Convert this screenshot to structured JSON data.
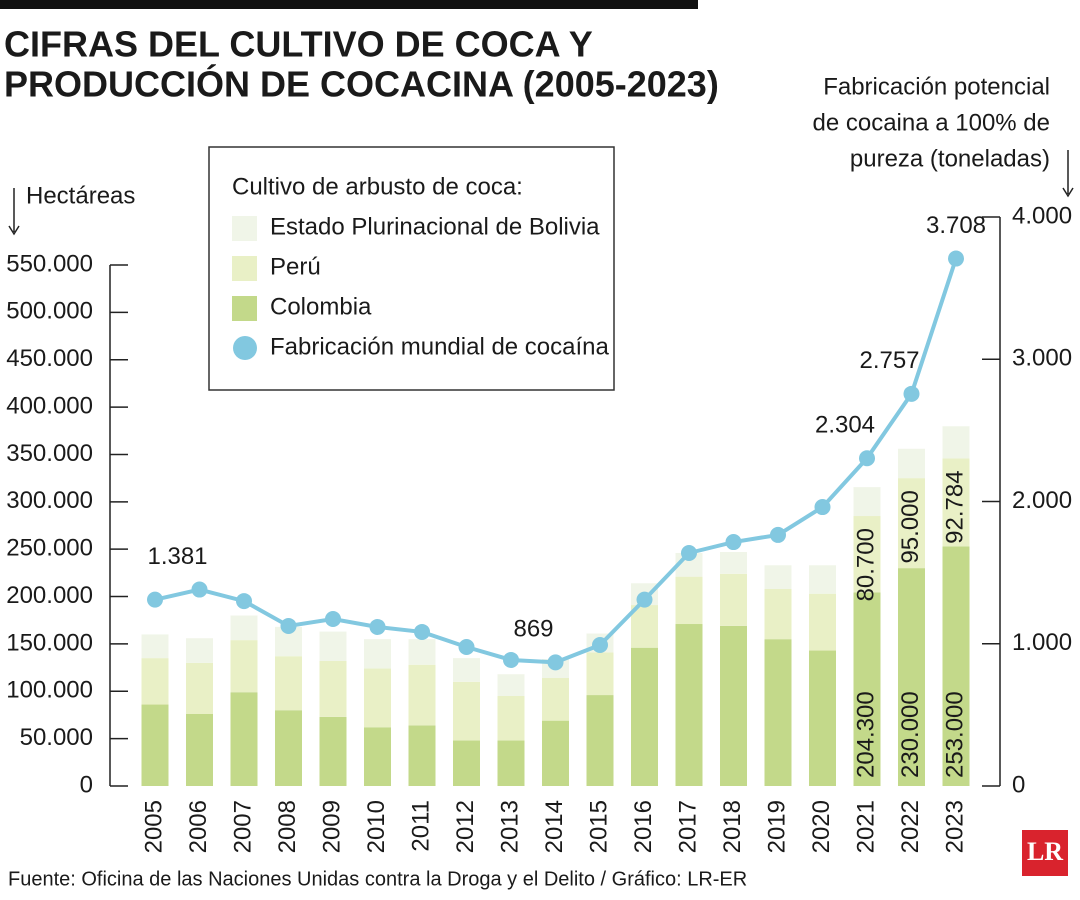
{
  "chart_data": {
    "type": "bar",
    "title": [
      "CIFRAS DEL CULTIVO DE COCA Y",
      "PRODUCCIÓN DE COCACINA (2005-2023)"
    ],
    "y_axis_label": "Hectáreas",
    "y2_axis_label": [
      "Fabricación potencial",
      "de cocaina a 100% de",
      "pureza (toneladas)"
    ],
    "legend_title": "Cultivo de arbusto de coca:",
    "source": "Fuente: Oficina de las Naciones Unidas contra la Droga y el Delito / Gráfico: LR-ER",
    "logo": "LR",
    "stacked": true,
    "categories": [
      "2005",
      "2006",
      "2007",
      "2008",
      "2009",
      "2010",
      "2011",
      "2012",
      "2013",
      "2014",
      "2015",
      "2016",
      "2017",
      "2018",
      "2019",
      "2020",
      "2021",
      "2022",
      "2023"
    ],
    "series": [
      {
        "name": "Colombia",
        "color": "#c3d98a",
        "values": [
          86000,
          76000,
          99000,
          80000,
          73000,
          62000,
          64000,
          48000,
          48000,
          69000,
          96000,
          146000,
          171000,
          169000,
          155000,
          143000,
          204300,
          230000,
          253000
        ],
        "value_labels": [
          null,
          null,
          null,
          null,
          null,
          null,
          null,
          null,
          null,
          null,
          null,
          null,
          null,
          null,
          null,
          null,
          "204.300",
          "230.000",
          "253.000"
        ]
      },
      {
        "name": "Perú",
        "color": "#e9f0c6",
        "values": [
          49000,
          54000,
          55000,
          57000,
          59000,
          62000,
          64000,
          62000,
          47000,
          45000,
          45000,
          45000,
          50000,
          55000,
          53000,
          60000,
          80700,
          95000,
          92784
        ],
        "value_labels": [
          null,
          null,
          null,
          null,
          null,
          null,
          null,
          null,
          null,
          null,
          null,
          null,
          null,
          null,
          null,
          null,
          "80.700",
          "95.000",
          "92.784"
        ]
      },
      {
        "name": "Estado Plurinacional de Bolivia",
        "color": "#f0f5e8",
        "values": [
          25000,
          26000,
          26000,
          31000,
          31000,
          31000,
          27000,
          25000,
          23000,
          20000,
          20000,
          23000,
          25000,
          23000,
          25000,
          30000,
          30500,
          31000,
          34000
        ]
      },
      {
        "name": "Fabricación mundial de cocaína",
        "color": "#82c8e0",
        "type": "line",
        "axis": "y2",
        "values": [
          1310,
          1381,
          1300,
          1125,
          1174,
          1118,
          1083,
          977,
          886,
          869,
          991,
          1310,
          1638,
          1715,
          1765,
          1961,
          2304,
          2757,
          3708
        ],
        "value_labels": [
          null,
          "1.381",
          null,
          null,
          null,
          null,
          null,
          null,
          null,
          "869",
          null,
          null,
          null,
          null,
          null,
          null,
          "2.304",
          "2.757",
          "3.708"
        ]
      }
    ],
    "ylim": [
      0,
      550000
    ],
    "yticks": [
      0,
      {
        "value": 50000,
        "label": "50.000"
      },
      {
        "value": 100000,
        "label": "100.000"
      },
      {
        "value": 150000,
        "label": "150.000"
      },
      {
        "value": 200000,
        "label": "200.000"
      },
      {
        "value": 250000,
        "label": "250.000"
      },
      {
        "value": 300000,
        "label": "300.000"
      },
      {
        "value": 350000,
        "label": "350.000"
      },
      {
        "value": 400000,
        "label": "400.000"
      },
      {
        "value": 450000,
        "label": "450.000"
      },
      {
        "value": 500000,
        "label": "500.000"
      },
      {
        "value": 550000,
        "label": "550.000"
      }
    ],
    "y2lim": [
      0,
      4000
    ],
    "y2ticks": [
      0,
      {
        "value": 1000,
        "label": "1.000"
      },
      {
        "value": 2000,
        "label": "2.000"
      },
      {
        "value": 3000,
        "label": "3.000"
      },
      {
        "value": 4000,
        "label": "4.000"
      }
    ],
    "grid": false
  }
}
